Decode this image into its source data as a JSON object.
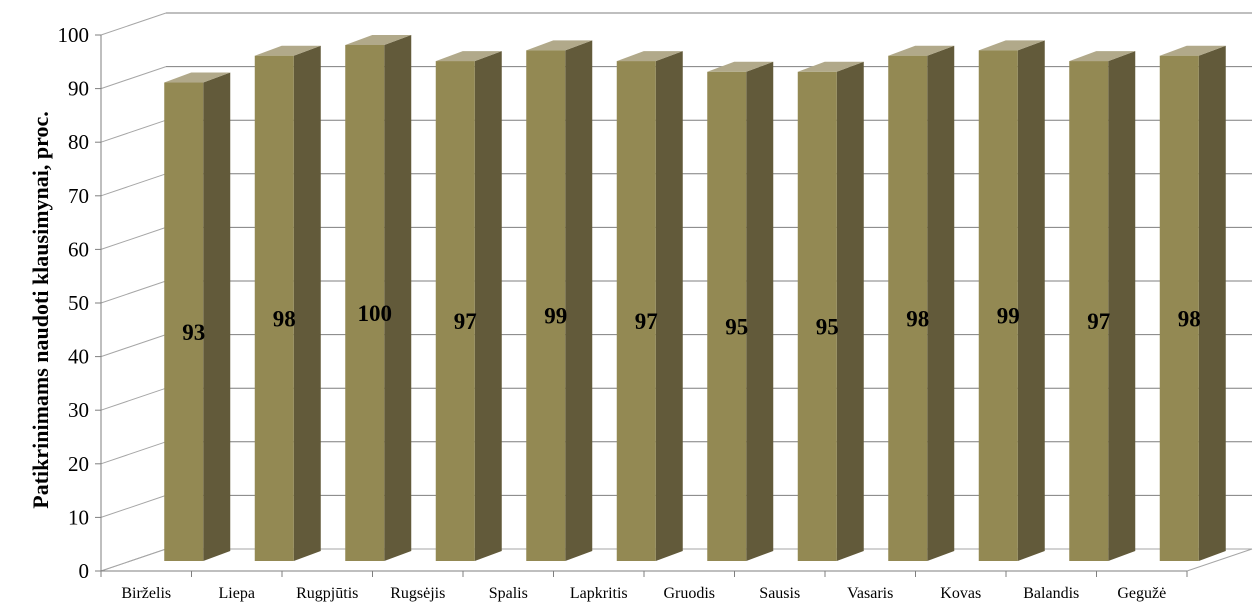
{
  "chart_data": {
    "type": "bar",
    "title": "",
    "xlabel": "",
    "ylabel": "Patikrinimams naudoti klausimynai, proc.",
    "categories": [
      "Birželis",
      "Liepa",
      "Rugpjūtis",
      "Rugsėjis",
      "Spalis",
      "Lapkritis",
      "Gruodis",
      "Sausis",
      "Vasaris",
      "Kovas",
      "Balandis",
      "Gegužė"
    ],
    "values": [
      93,
      98,
      100,
      97,
      99,
      97,
      95,
      95,
      98,
      99,
      97,
      98
    ],
    "ylim": [
      0,
      100
    ],
    "yticks": [
      0,
      10,
      20,
      30,
      40,
      50,
      60,
      70,
      80,
      90,
      100
    ],
    "grid": true,
    "legend": "none",
    "style": "3d-column",
    "colors": {
      "bar_front": "#938953",
      "bar_side": "#625a3a",
      "bar_top": "#b1a98a",
      "gridline": "#7f7f7f",
      "wall_line": "#a6a6a6"
    }
  }
}
